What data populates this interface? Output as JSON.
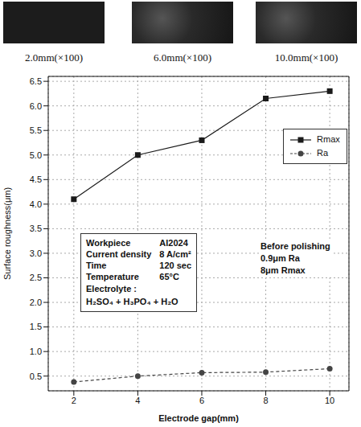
{
  "images": [
    {
      "caption": "2.0mm(×100)"
    },
    {
      "caption": "6.0mm(×100)"
    },
    {
      "caption": "10.0mm(×100)"
    }
  ],
  "chart_data": {
    "type": "line",
    "x_label": "Electrode gap(mm)",
    "y_label": "Surface roughness(μm)",
    "x": [
      2,
      4,
      6,
      8,
      10
    ],
    "series": [
      {
        "name": "Rmax",
        "color": "#1a1a1a",
        "marker": "square",
        "line_style": "solid",
        "values": [
          4.1,
          5.0,
          5.3,
          6.15,
          6.3
        ]
      },
      {
        "name": "Ra",
        "color": "#444444",
        "marker": "circle",
        "line_style": "dashed",
        "values": [
          0.38,
          0.5,
          0.57,
          0.58,
          0.65
        ]
      }
    ],
    "xlim": [
      1.2,
      10.6
    ],
    "xticks": [
      2,
      4,
      6,
      8,
      10
    ],
    "ylim": [
      0.2,
      6.6
    ],
    "yticks": [
      0.5,
      {
        "value": 1,
        "label": "1.0"
      },
      1.5,
      {
        "value": 2,
        "label": "2.0"
      },
      2.5,
      {
        "value": 3,
        "label": "3.0"
      },
      3.5,
      {
        "value": 4,
        "label": "4.0"
      },
      4.5,
      {
        "value": 5,
        "label": "5.0"
      },
      5.5,
      {
        "value": 6,
        "label": "6.0"
      },
      6.5
    ],
    "grid": true,
    "legend": "upper right",
    "conditions": [
      {
        "label": "Workpiece",
        "value": "Al2024"
      },
      {
        "label": "Current density",
        "value": "8 A/cm²"
      },
      {
        "label": "Time",
        "value": "120 sec"
      },
      {
        "label": "Temperature",
        "value": "65°C"
      }
    ],
    "electrolyte": {
      "label": "Electrolyte :",
      "value": "H₂SO₄ + H₃PO₄ + H₂O"
    },
    "note": [
      "Before polishing",
      "0.9μm Ra",
      "8μm Rmax"
    ]
  }
}
